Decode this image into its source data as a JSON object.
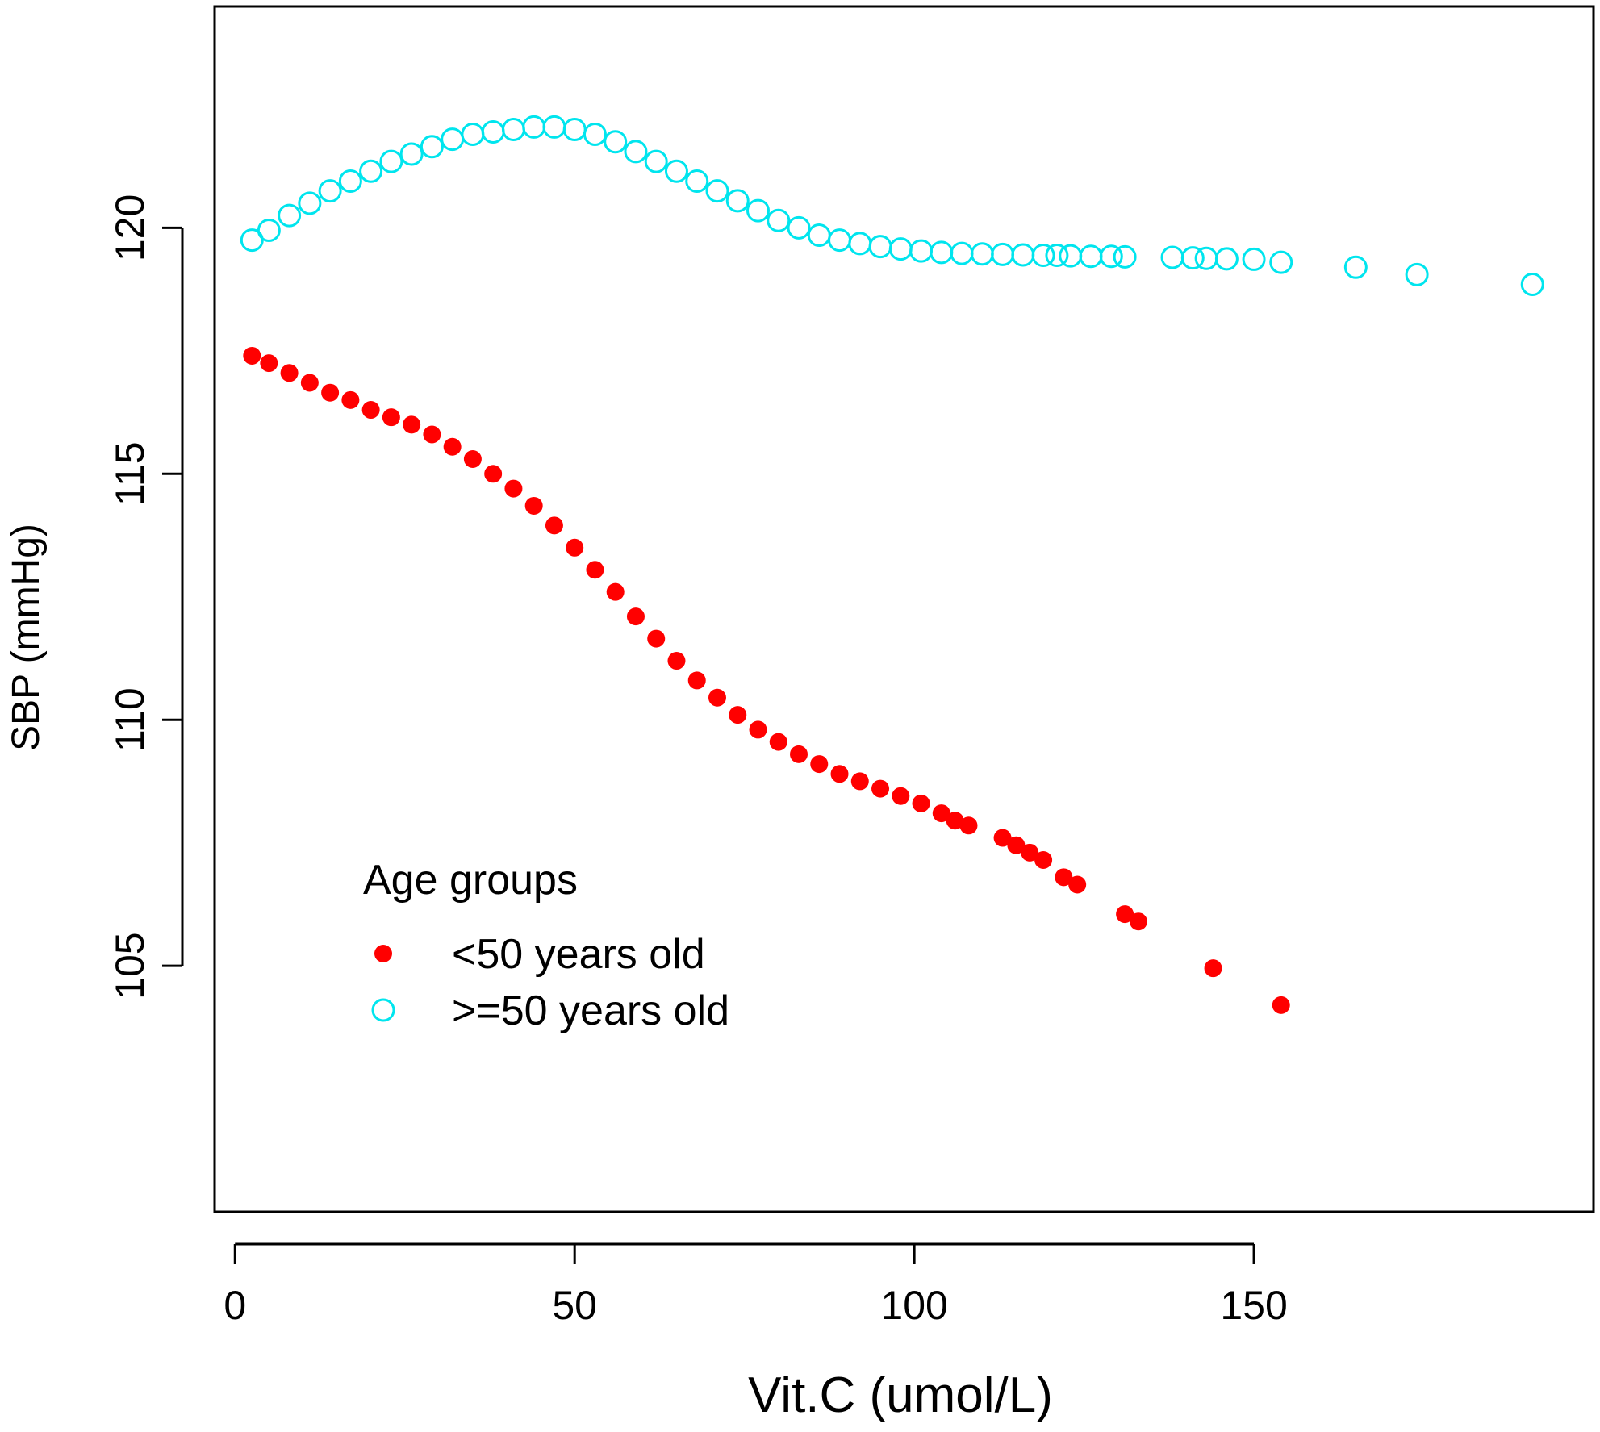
{
  "chart_data": {
    "type": "scatter",
    "title": "",
    "xlabel": "Vit.C (umol/L)",
    "ylabel": "SBP (mmHg)",
    "xlim": [
      -3,
      200
    ],
    "ylim": [
      100,
      124.5
    ],
    "xticks": [
      0,
      50,
      100,
      150
    ],
    "yticks": [
      105,
      110,
      115,
      120
    ],
    "x_tick_labels": [
      "0",
      "50",
      "100",
      "150"
    ],
    "y_tick_labels": [
      "105",
      "110",
      "115",
      "120"
    ],
    "grid": false,
    "legend": {
      "title": "Age groups",
      "position": "bottom-left",
      "entries": [
        "<50 years old",
        ">=50 years old"
      ]
    },
    "series": [
      {
        "name": "<50 years old",
        "marker": "filled-circle",
        "color": "#ff0000",
        "x": [
          2.5,
          5,
          8,
          11,
          14,
          17,
          20,
          23,
          26,
          29,
          32,
          35,
          38,
          41,
          44,
          47,
          50,
          53,
          56,
          59,
          62,
          65,
          68,
          71,
          74,
          77,
          80,
          83,
          86,
          89,
          92,
          95,
          98,
          101,
          104,
          106,
          108,
          113,
          115,
          117,
          119,
          122,
          124,
          131,
          133,
          144,
          154
        ],
        "y": [
          117.4,
          117.25,
          117.05,
          116.85,
          116.65,
          116.5,
          116.3,
          116.15,
          116.0,
          115.8,
          115.55,
          115.3,
          115.0,
          114.7,
          114.35,
          113.95,
          113.5,
          113.05,
          112.6,
          112.1,
          111.65,
          111.2,
          110.8,
          110.45,
          110.1,
          109.8,
          109.55,
          109.3,
          109.1,
          108.9,
          108.75,
          108.6,
          108.45,
          108.3,
          108.1,
          107.95,
          107.85,
          107.6,
          107.45,
          107.3,
          107.15,
          106.8,
          106.65,
          106.05,
          105.9,
          104.95,
          104.2
        ]
      },
      {
        "name": ">=50 years old",
        "marker": "open-circle",
        "color": "#00e5ee",
        "x": [
          2.5,
          5,
          8,
          11,
          14,
          17,
          20,
          23,
          26,
          29,
          32,
          35,
          38,
          41,
          44,
          47,
          50,
          53,
          56,
          59,
          62,
          65,
          68,
          71,
          74,
          77,
          80,
          83,
          86,
          89,
          92,
          95,
          98,
          101,
          104,
          107,
          110,
          113,
          116,
          119,
          121,
          123,
          126,
          129,
          131,
          138,
          141,
          143,
          146,
          150,
          154,
          165,
          174,
          191
        ],
        "y": [
          119.75,
          119.95,
          120.25,
          120.5,
          120.75,
          120.95,
          121.15,
          121.35,
          121.5,
          121.65,
          121.8,
          121.9,
          121.95,
          122.0,
          122.05,
          122.05,
          122.0,
          121.9,
          121.75,
          121.55,
          121.35,
          121.15,
          120.95,
          120.75,
          120.55,
          120.35,
          120.15,
          120.0,
          119.85,
          119.75,
          119.68,
          119.62,
          119.57,
          119.53,
          119.5,
          119.48,
          119.47,
          119.46,
          119.45,
          119.44,
          119.44,
          119.43,
          119.42,
          119.42,
          119.41,
          119.4,
          119.39,
          119.38,
          119.37,
          119.36,
          119.3,
          119.2,
          119.05,
          118.85
        ]
      }
    ]
  }
}
